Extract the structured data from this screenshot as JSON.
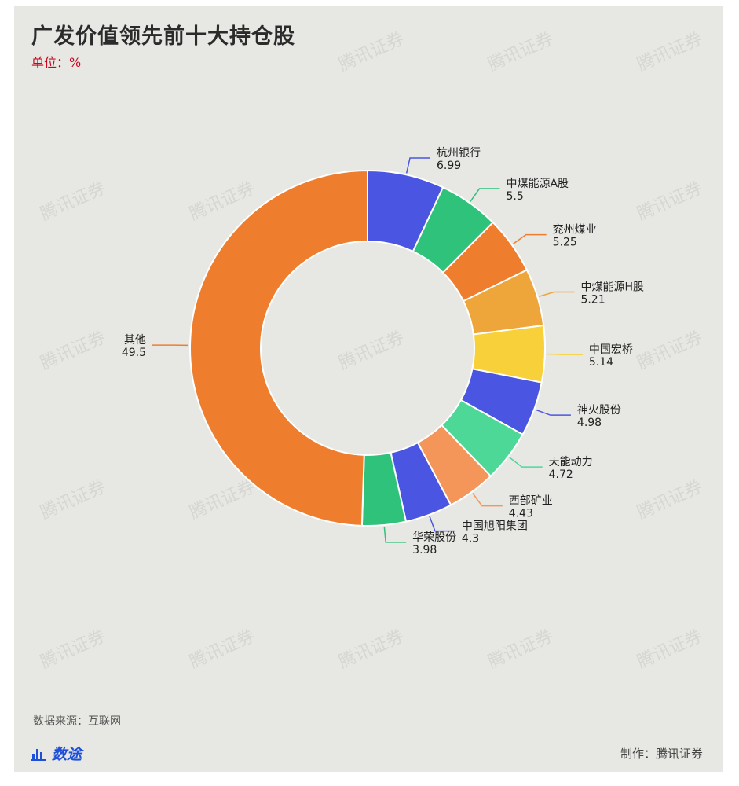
{
  "header": {
    "title": "广发价值领先前十大持仓股",
    "unit": "单位：%"
  },
  "footer": {
    "source": "数据来源：互联网",
    "brand": "数途",
    "maker": "制作：腾讯证券"
  },
  "watermark": "腾讯证券",
  "chart_data": {
    "type": "pie",
    "donut": true,
    "slices": [
      {
        "label": "杭州银行",
        "value": 6.99,
        "color": "#4a56e2"
      },
      {
        "label": "中煤能源A股",
        "value": 5.5,
        "color": "#2fc27a"
      },
      {
        "label": "兖州煤业",
        "value": 5.25,
        "color": "#ee7d2e"
      },
      {
        "label": "中煤能源H股",
        "value": 5.21,
        "color": "#eea53a"
      },
      {
        "label": "中国宏桥",
        "value": 5.14,
        "color": "#f8d13a"
      },
      {
        "label": "神火股份",
        "value": 4.98,
        "color": "#4a56e2"
      },
      {
        "label": "天能动力",
        "value": 4.72,
        "color": "#4dd898"
      },
      {
        "label": "西部矿业",
        "value": 4.43,
        "color": "#f4955a"
      },
      {
        "label": "中国旭阳集团",
        "value": 4.3,
        "color": "#4a56e2"
      },
      {
        "label": "华荣股份",
        "value": 3.98,
        "color": "#2fc27a"
      },
      {
        "label": "其他",
        "value": 49.5,
        "color": "#ee7d2e"
      }
    ]
  }
}
